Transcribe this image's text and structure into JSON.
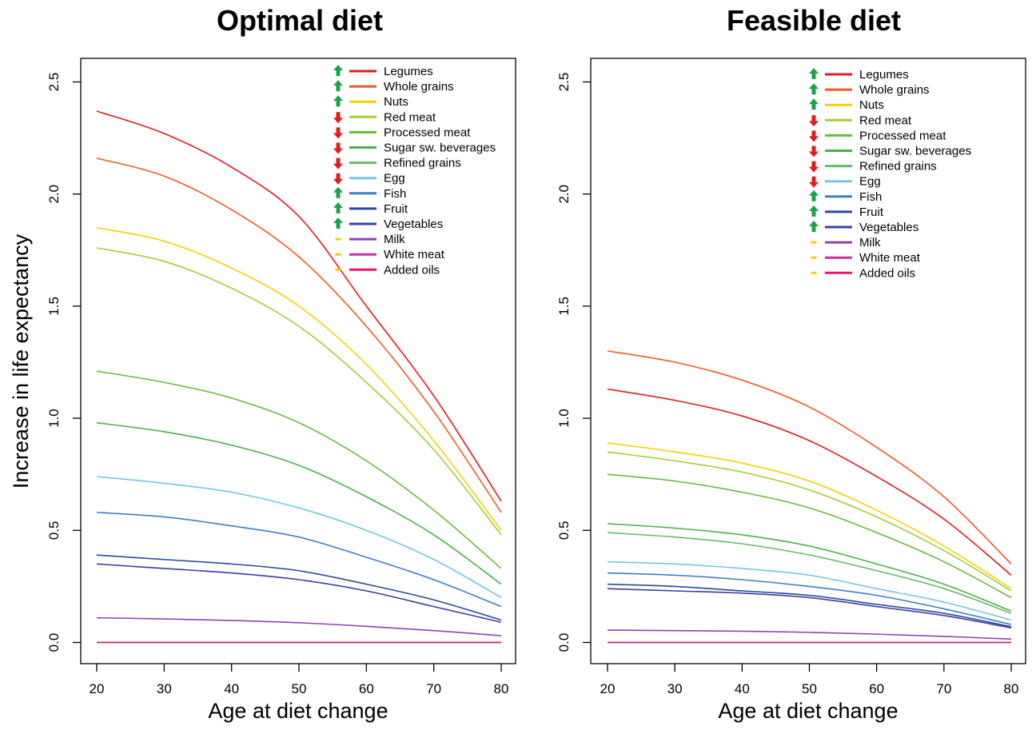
{
  "chart_data": [
    {
      "type": "line",
      "title": "Optimal diet",
      "xlabel": "Age at diet change",
      "ylabel": "Increase in life expectancy",
      "xlim": [
        20,
        80
      ],
      "ylim": [
        0,
        2.5
      ],
      "x": [
        20,
        30,
        40,
        50,
        60,
        70,
        80
      ],
      "xticks": [
        "20",
        "30",
        "40",
        "50",
        "60",
        "70",
        "80"
      ],
      "yticks": [
        "0.0",
        "0.5",
        "1.0",
        "1.5",
        "2.0",
        "2.5"
      ],
      "legend_position": "top-right",
      "series": [
        {
          "name": "Legumes",
          "color": "#e41a1c",
          "direction": "up",
          "values": [
            2.37,
            2.27,
            2.12,
            1.9,
            1.5,
            1.1,
            0.63
          ]
        },
        {
          "name": "Whole grains",
          "color": "#f05a28",
          "direction": "up",
          "values": [
            2.16,
            2.08,
            1.93,
            1.72,
            1.41,
            1.03,
            0.58
          ]
        },
        {
          "name": "Nuts",
          "color": "#f5d000",
          "direction": "up",
          "values": [
            1.85,
            1.79,
            1.67,
            1.5,
            1.24,
            0.9,
            0.5
          ]
        },
        {
          "name": "Red meat",
          "color": "#a6cc38",
          "direction": "down",
          "values": [
            1.76,
            1.7,
            1.58,
            1.41,
            1.16,
            0.86,
            0.48
          ]
        },
        {
          "name": "Processed meat",
          "color": "#6ab83e",
          "direction": "down",
          "values": [
            1.21,
            1.16,
            1.09,
            0.98,
            0.81,
            0.59,
            0.33
          ]
        },
        {
          "name": "Sugar  sw. beverages",
          "color": "#4daf4a",
          "direction": "down",
          "values": [
            0.98,
            0.94,
            0.88,
            0.79,
            0.65,
            0.48,
            0.26
          ]
        },
        {
          "name": "Refined grains",
          "color": "#66bb6a",
          "direction": "down",
          "values": [
            0,
            0,
            0,
            0,
            0,
            0,
            0
          ]
        },
        {
          "name": "Egg",
          "color": "#74c7dd",
          "direction": "down",
          "values": [
            0.74,
            0.71,
            0.67,
            0.6,
            0.5,
            0.37,
            0.2
          ]
        },
        {
          "name": "Fish",
          "color": "#3f7fc1",
          "direction": "up",
          "values": [
            0.58,
            0.56,
            0.52,
            0.47,
            0.38,
            0.28,
            0.16
          ]
        },
        {
          "name": "Fruit",
          "color": "#2b4a9b",
          "direction": "up",
          "values": [
            0.39,
            0.37,
            0.35,
            0.32,
            0.26,
            0.19,
            0.1
          ]
        },
        {
          "name": "Vegetables",
          "color": "#3a3fa0",
          "direction": "up",
          "values": [
            0.35,
            0.33,
            0.31,
            0.28,
            0.23,
            0.16,
            0.09
          ]
        },
        {
          "name": "Milk",
          "color": "#8e44ad",
          "direction": "neutral",
          "values": [
            0.11,
            0.105,
            0.098,
            0.088,
            0.072,
            0.053,
            0.03
          ]
        },
        {
          "name": "White meat",
          "color": "#c2359c",
          "direction": "neutral",
          "values": [
            0,
            0,
            0,
            0,
            0,
            0,
            0
          ]
        },
        {
          "name": "Added oils",
          "color": "#e3186e",
          "direction": "neutral",
          "values": [
            0,
            0,
            0,
            0,
            0,
            0,
            0
          ]
        }
      ]
    },
    {
      "type": "line",
      "title": "Feasible diet",
      "xlabel": "Age at diet change",
      "ylabel": "",
      "xlim": [
        20,
        80
      ],
      "ylim": [
        0,
        2.5
      ],
      "x": [
        20,
        30,
        40,
        50,
        60,
        70,
        80
      ],
      "xticks": [
        "20",
        "30",
        "40",
        "50",
        "60",
        "70",
        "80"
      ],
      "yticks": [
        "0.0",
        "0.5",
        "1.0",
        "1.5",
        "2.0",
        "2.5"
      ],
      "legend_position": "top-right",
      "series": [
        {
          "name": "Legumes",
          "color": "#e41a1c",
          "direction": "up",
          "values": [
            1.13,
            1.08,
            1.01,
            0.9,
            0.74,
            0.55,
            0.3
          ]
        },
        {
          "name": "Whole grains",
          "color": "#f05a28",
          "direction": "up",
          "values": [
            1.3,
            1.25,
            1.17,
            1.05,
            0.87,
            0.65,
            0.35
          ]
        },
        {
          "name": "Nuts",
          "color": "#f5d000",
          "direction": "up",
          "values": [
            0.89,
            0.85,
            0.8,
            0.72,
            0.59,
            0.43,
            0.24
          ]
        },
        {
          "name": "Red meat",
          "color": "#a6cc38",
          "direction": "down",
          "values": [
            0.85,
            0.81,
            0.76,
            0.68,
            0.56,
            0.41,
            0.23
          ]
        },
        {
          "name": "Processed meat",
          "color": "#6ab83e",
          "direction": "down",
          "values": [
            0.75,
            0.72,
            0.67,
            0.6,
            0.49,
            0.36,
            0.2
          ]
        },
        {
          "name": "Sugar  sw. beverages",
          "color": "#4daf4a",
          "direction": "down",
          "values": [
            0.53,
            0.51,
            0.48,
            0.43,
            0.35,
            0.26,
            0.14
          ]
        },
        {
          "name": "Refined grains",
          "color": "#66bb6a",
          "direction": "down",
          "values": [
            0.49,
            0.47,
            0.44,
            0.39,
            0.32,
            0.24,
            0.13
          ]
        },
        {
          "name": "Egg",
          "color": "#74c7dd",
          "direction": "down",
          "values": [
            0.36,
            0.35,
            0.33,
            0.3,
            0.24,
            0.18,
            0.1
          ]
        },
        {
          "name": "Fish",
          "color": "#3f7fc1",
          "direction": "up",
          "values": [
            0.31,
            0.3,
            0.28,
            0.25,
            0.21,
            0.15,
            0.08
          ]
        },
        {
          "name": "Fruit",
          "color": "#2b4a9b",
          "direction": "up",
          "values": [
            0.26,
            0.25,
            0.23,
            0.21,
            0.17,
            0.13,
            0.07
          ]
        },
        {
          "name": "Vegetables",
          "color": "#3a3fa0",
          "direction": "up",
          "values": [
            0.24,
            0.23,
            0.22,
            0.2,
            0.16,
            0.12,
            0.065
          ]
        },
        {
          "name": "Milk",
          "color": "#8e44ad",
          "direction": "neutral",
          "values": [
            0.055,
            0.053,
            0.05,
            0.045,
            0.037,
            0.027,
            0.015
          ]
        },
        {
          "name": "White meat",
          "color": "#c2359c",
          "direction": "neutral",
          "values": [
            0,
            0,
            0,
            0,
            0,
            0,
            0
          ]
        },
        {
          "name": "Added oils",
          "color": "#e3186e",
          "direction": "neutral",
          "values": [
            0,
            0,
            0,
            0,
            0,
            0,
            0
          ]
        }
      ]
    }
  ],
  "legend_icon_colors": {
    "up": "#1aa34a",
    "down": "#e41a1c",
    "neutral": "#f5d000"
  }
}
